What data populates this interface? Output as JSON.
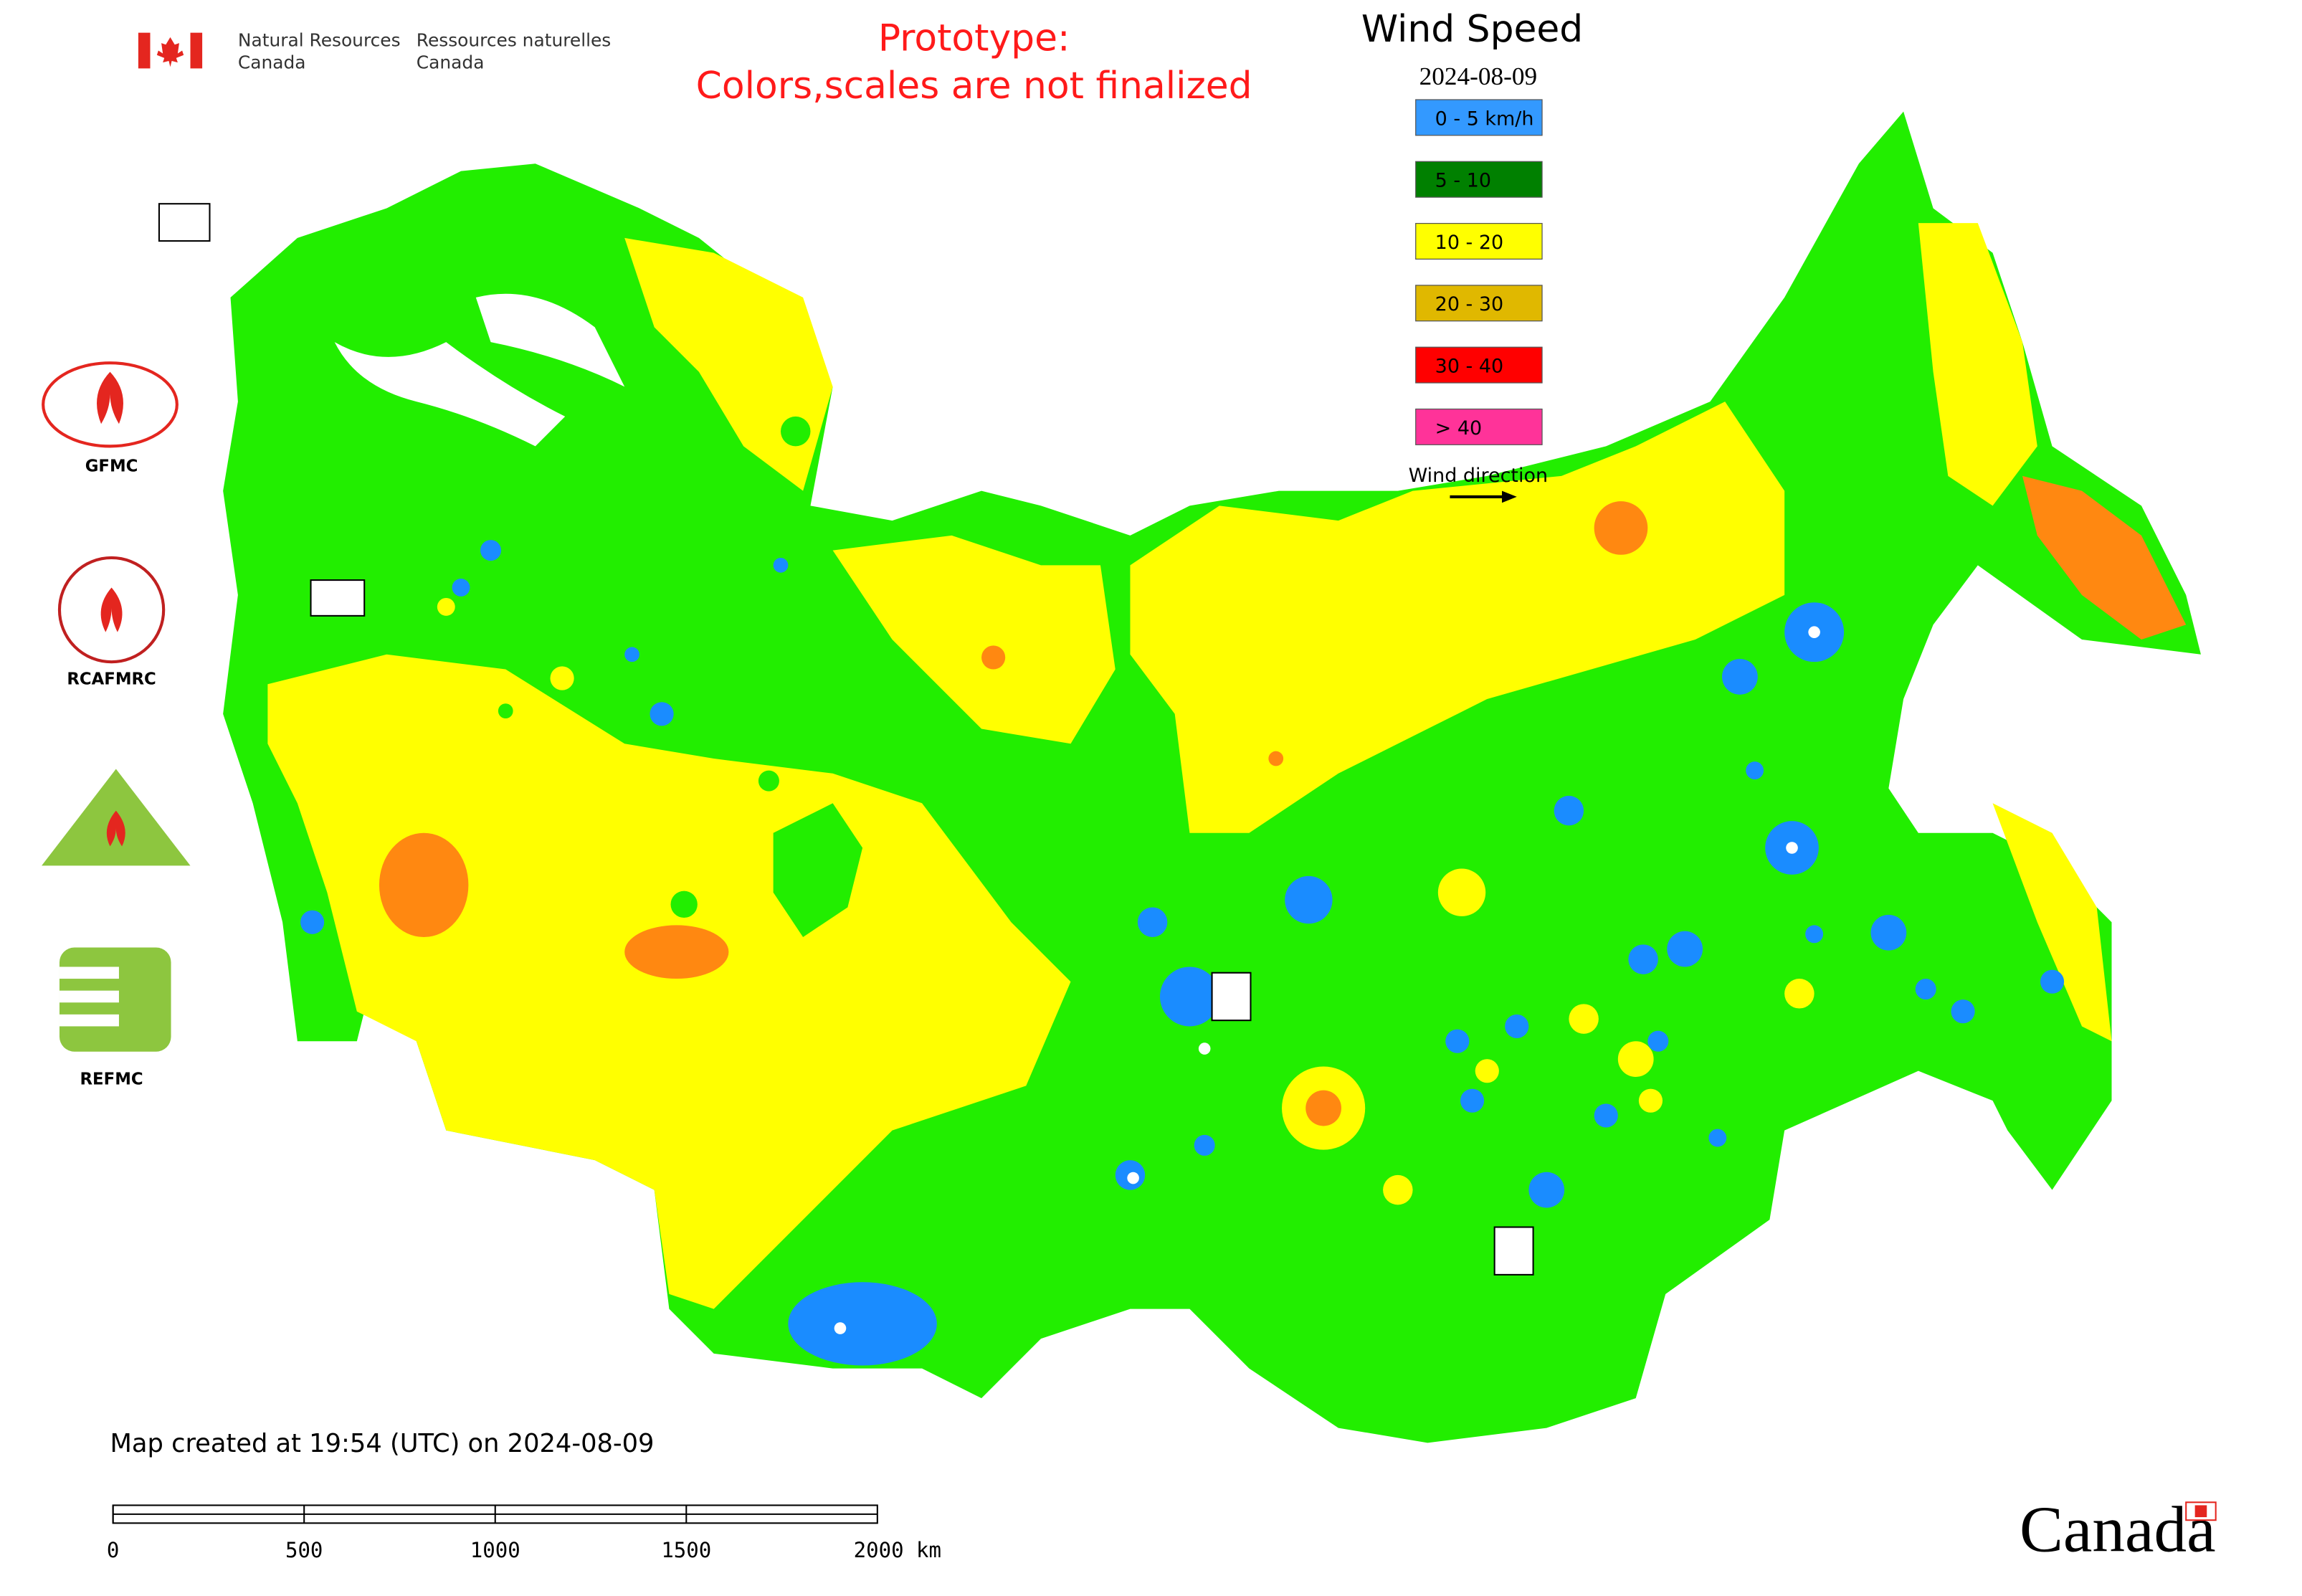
{
  "header": {
    "agency_en": [
      "Natural Resources",
      "Canada"
    ],
    "agency_fr": [
      "Ressources naturelles",
      "Canada"
    ]
  },
  "notice": [
    "Prototype:",
    "Colors,scales are not finalized"
  ],
  "legend": {
    "title": "Wind Speed",
    "date": "2024-08-09",
    "items": [
      {
        "label": "0 - 5 km/h",
        "color": "#3399ff"
      },
      {
        "label": "5 - 10",
        "color": "#008000"
      },
      {
        "label": "10 - 20",
        "color": "#ffff00"
      },
      {
        "label": "20 - 30",
        "color": "#e0b800"
      },
      {
        "label": "30 - 40",
        "color": "#ff0000"
      },
      {
        "label": "> 40",
        "color": "#ff3399"
      }
    ],
    "direction_label": "Wind direction"
  },
  "logos": [
    "GFMC",
    "RCAFMRC",
    "REFMC"
  ],
  "footer": {
    "created": "Map created at 19:54 (UTC) on 2024-08-09",
    "scale_labels": [
      "0",
      "500",
      "1000",
      "1500",
      "2000 km"
    ],
    "wordmark": "Canada"
  }
}
